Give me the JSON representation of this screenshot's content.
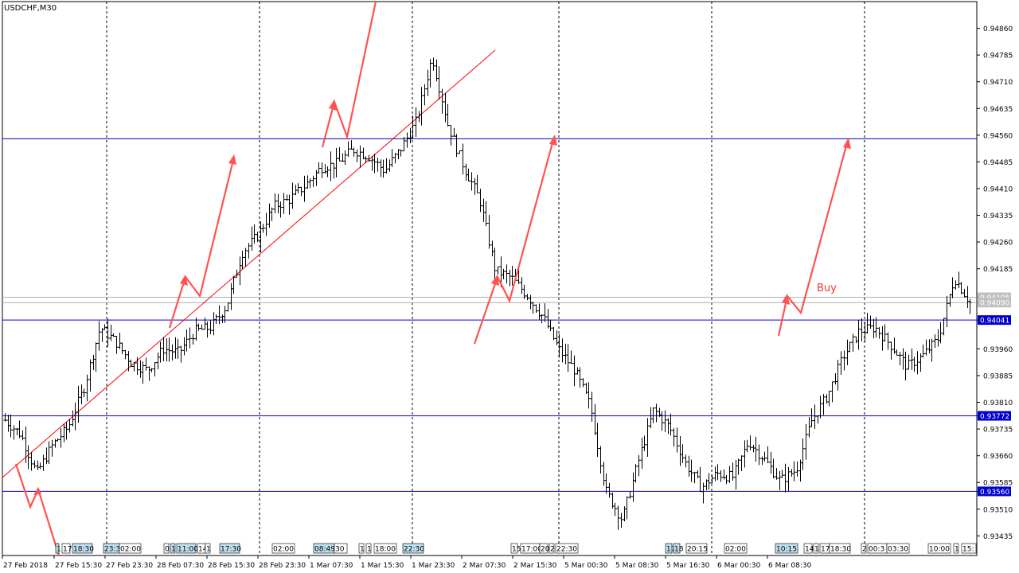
{
  "window": {
    "title": "USDCHF,M30"
  },
  "colors": {
    "background": "#ffffff",
    "bars": "#000000",
    "grid": "#000000",
    "level_lines": "#0000cc",
    "level_label_bg": "#0000cc",
    "level_label_text": "#ffffff",
    "arrows": "#ff5252",
    "trendline": "#ff0000",
    "tag_blue": "#bfe0f0",
    "tag_white": "#ffffff"
  },
  "annotation": {
    "label": "Buy"
  },
  "chart_data": {
    "type": "bar",
    "title": "USDCHF,M30",
    "ylim": [
      0.9338,
      0.94935
    ],
    "y_ticks": [
      "0.94860",
      "0.94785",
      "0.94710",
      "0.94635",
      "0.94560",
      "0.94485",
      "0.94410",
      "0.94335",
      "0.94260",
      "0.94185",
      "0.94105",
      "0.94090",
      "0.94041",
      "0.93960",
      "0.93885",
      "0.93810",
      "0.93772",
      "0.93735",
      "0.93660",
      "0.93585",
      "0.93560",
      "0.93510",
      "0.93435"
    ],
    "x_ticks": [
      "27 Feb 2018",
      "27 Feb 15:30",
      "27 Feb 23:30",
      "28 Feb 07:30",
      "28 Feb 15:30",
      "28 Feb 23:30",
      "1 Mar 07:30",
      "1 Mar 15:30",
      "1 Mar 23:30",
      "2 Mar 07:30",
      "2 Mar 15:30",
      "5 Mar 00:30",
      "5 Mar 08:30",
      "5 Mar 16:30",
      "6 Mar 00:30",
      "6 Mar 08:30"
    ],
    "horizontal_levels": [
      {
        "price": "0.94550",
        "style": "blue"
      },
      {
        "price": "0.94041",
        "style": "blue"
      },
      {
        "price": "0.93772",
        "style": "blue"
      },
      {
        "price": "0.93560",
        "style": "blue"
      },
      {
        "price": "0.94105",
        "style": "grey"
      },
      {
        "price": "0.94090",
        "style": "grey"
      }
    ],
    "time_tags": [
      {
        "text": "1",
        "c": "b"
      },
      {
        "text": "17",
        "c": "w"
      },
      {
        "text": "18:30",
        "c": "b"
      },
      {
        "text": "23:3",
        "c": "b"
      },
      {
        "text": "02:00",
        "c": "w"
      },
      {
        "text": "0",
        "c": "w"
      },
      {
        "text": "1",
        "c": "b"
      },
      {
        "text": "11:00",
        "c": "b"
      },
      {
        "text": "14",
        "c": "w"
      },
      {
        "text": "1",
        "c": "w"
      },
      {
        "text": "17:30",
        "c": "b"
      },
      {
        "text": "02:00",
        "c": "w"
      },
      {
        "text": "08:49",
        "c": "b"
      },
      {
        "text": "30",
        "c": "w"
      },
      {
        "text": "1",
        "c": "w"
      },
      {
        "text": "1",
        "c": "w"
      },
      {
        "text": "18:00",
        "c": "w"
      },
      {
        "text": "22:30",
        "c": "b"
      },
      {
        "text": "15",
        "c": "w"
      },
      {
        "text": "17:00",
        "c": "w"
      },
      {
        "text": "20",
        "c": "w"
      },
      {
        "text": "2",
        "c": "w"
      },
      {
        "text": "22:30",
        "c": "w"
      },
      {
        "text": "17",
        "c": "b"
      },
      {
        "text": "18",
        "c": "b"
      },
      {
        "text": "20:15",
        "c": "w"
      },
      {
        "text": "02:00",
        "c": "w"
      },
      {
        "text": "10:15",
        "c": "b"
      },
      {
        "text": "14",
        "c": "w"
      },
      {
        "text": "1",
        "c": "w"
      },
      {
        "text": "17",
        "c": "w"
      },
      {
        "text": "18:30",
        "c": "w"
      },
      {
        "text": "2",
        "c": "w"
      },
      {
        "text": "00:3",
        "c": "w"
      },
      {
        "text": "03:30",
        "c": "w"
      },
      {
        "text": "10:00",
        "c": "w"
      },
      {
        "text": "1",
        "c": "w"
      },
      {
        "text": "15:",
        "c": "w"
      }
    ],
    "price_path": [
      0.9376,
      0.9372,
      0.9361,
      0.9369,
      0.9374,
      0.9385,
      0.9402,
      0.9398,
      0.9392,
      0.939,
      0.9396,
      0.9395,
      0.9401,
      0.9402,
      0.9408,
      0.9423,
      0.9428,
      0.9436,
      0.9438,
      0.9442,
      0.9447,
      0.9448,
      0.9452,
      0.945,
      0.9446,
      0.9452,
      0.946,
      0.9478,
      0.9459,
      0.9447,
      0.9438,
      0.9418,
      0.9416,
      0.9411,
      0.9405,
      0.9396,
      0.939,
      0.938,
      0.9356,
      0.9348,
      0.9364,
      0.9379,
      0.9374,
      0.9364,
      0.9357,
      0.9361,
      0.936,
      0.937,
      0.9365,
      0.9359,
      0.9362,
      0.9376,
      0.9383,
      0.9394,
      0.9401,
      0.9402,
      0.9397,
      0.9391,
      0.9394,
      0.9399,
      0.9416,
      0.9409
    ]
  }
}
